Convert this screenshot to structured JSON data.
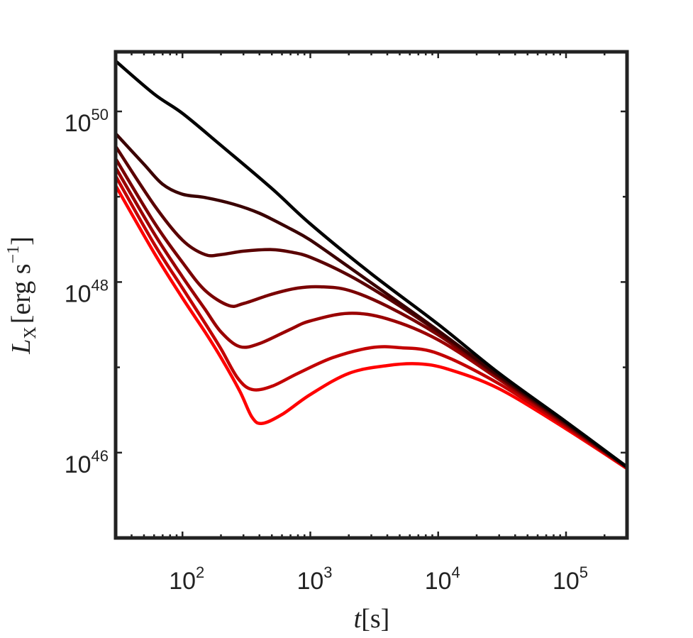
{
  "chart_data": {
    "type": "line",
    "xlabel": {
      "symbol": "t",
      "unit": "[s]"
    },
    "ylabel": {
      "symbol": "L",
      "subscript": "X",
      "unit_open": "[erg s",
      "unit_exp": "−1",
      "unit_close": "]"
    },
    "xscale": "log",
    "yscale": "log",
    "xlim": [
      30,
      300000
    ],
    "ylim": [
      1e+45,
      5e+50
    ],
    "x_ticks": [
      {
        "base": "10",
        "exp": "2"
      },
      {
        "base": "10",
        "exp": "3"
      },
      {
        "base": "10",
        "exp": "4"
      },
      {
        "base": "10",
        "exp": "5"
      }
    ],
    "y_ticks": [
      {
        "base": "10",
        "exp": "46"
      },
      {
        "base": "10",
        "exp": "48"
      },
      {
        "base": "10",
        "exp": "50"
      }
    ],
    "x_tick_values": [
      100,
      1000,
      10000,
      100000
    ],
    "y_tick_values": [
      1e+46,
      1e+48,
      1e+50
    ],
    "grid": false,
    "legend": "none",
    "series": [
      {
        "color": "#000000",
        "x": [
          30,
          60,
          100,
          200,
          500,
          1000,
          3000,
          10000,
          30000,
          100000,
          300000
        ],
        "y": [
          3.9e+50,
          1.6e+50,
          9.5e+49,
          4e+49,
          1.25e+49,
          4.8e+48,
          1.25e+48,
          3.2e+47,
          8.5e+46,
          2.3e+46,
          6.8e+45
        ]
      },
      {
        "color": "#3a0000",
        "x": [
          30,
          50,
          70,
          100,
          150,
          250,
          400,
          700,
          1000,
          2000,
          4000,
          10000,
          30000,
          100000,
          300000
        ],
        "y": [
          5.5e+49,
          2.4e+49,
          1.4e+49,
          1.07e+49,
          9.8e+48,
          8.2e+48,
          6.4e+48,
          4.2e+48,
          3.1e+48,
          1.5e+48,
          7.2e+47,
          2.7e+47,
          8e+46,
          2.25e+46,
          6.8e+45
        ]
      },
      {
        "color": "#5a0000",
        "x": [
          30,
          60,
          100,
          150,
          200,
          300,
          500,
          700,
          1000,
          2000,
          4000,
          10000,
          30000,
          100000,
          300000
        ],
        "y": [
          3.9e+49,
          8e+48,
          3.1e+48,
          2.1e+48,
          2.1e+48,
          2.3e+48,
          2.4e+48,
          2.25e+48,
          1.95e+48,
          1.2e+48,
          6.5e+47,
          2.6e+47,
          7.8e+46,
          2.2e+46,
          6.7e+45
        ]
      },
      {
        "color": "#7a0000",
        "x": [
          30,
          60,
          100,
          150,
          230,
          300,
          500,
          800,
          1200,
          2000,
          4000,
          10000,
          30000,
          100000,
          300000
        ],
        "y": [
          2.8e+49,
          5e+48,
          1.7e+48,
          8e+47,
          5.3e+47,
          5.6e+47,
          7.2e+47,
          8.5e+47,
          8.8e+47,
          8e+47,
          5.2e+47,
          2.4e+47,
          7.6e+46,
          2.15e+46,
          6.7e+45
        ]
      },
      {
        "color": "#9a0000",
        "x": [
          30,
          60,
          100,
          150,
          200,
          280,
          400,
          700,
          1000,
          2000,
          4000,
          10000,
          30000,
          100000,
          300000
        ],
        "y": [
          2.2e+49,
          3.7e+48,
          1.15e+48,
          4.8e+47,
          2.6e+47,
          1.75e+47,
          1.9e+47,
          2.8e+47,
          3.5e+47,
          4.3e+47,
          3.7e+47,
          2.1e+47,
          7.2e+46,
          2.1e+46,
          6.7e+45
        ]
      },
      {
        "color": "#c20000",
        "x": [
          30,
          60,
          100,
          150,
          200,
          270,
          350,
          500,
          800,
          1500,
          3000,
          5000,
          10000,
          30000,
          100000,
          300000
        ],
        "y": [
          1.75e+49,
          2.8e+48,
          8.5e+47,
          3.3e+47,
          1.65e+47,
          7.5e+46,
          5.5e+46,
          6e+46,
          8.5e+46,
          1.3e+47,
          1.7e+47,
          1.7e+47,
          1.45e+47,
          6.4e+46,
          2e+46,
          6.6e+45
        ]
      },
      {
        "color": "#ff0000",
        "x": [
          30,
          60,
          100,
          150,
          200,
          280,
          350,
          420,
          600,
          1000,
          2000,
          4000,
          7000,
          12000,
          30000,
          100000,
          300000
        ],
        "y": [
          1.35e+49,
          2.2e+48,
          6.5e+47,
          2.6e+47,
          1.3e+47,
          5.3e+46,
          2.6e+46,
          2.2e+46,
          2.8e+46,
          4.8e+46,
          8.5e+46,
          1.05e+47,
          1.1e+47,
          9.5e+46,
          5.6e+46,
          1.9e+46,
          6.5e+45
        ]
      }
    ]
  }
}
